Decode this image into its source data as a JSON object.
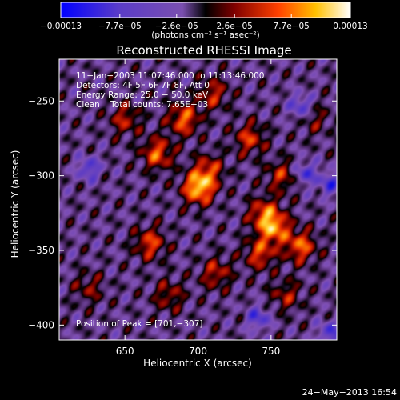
{
  "chart_data": {
    "type": "heatmap",
    "title": "Reconstructed RHESSI Image",
    "xlabel": "Heliocentric X (arcsec)",
    "ylabel": "Heliocentric Y (arcsec)",
    "xlim": [
      605,
      795
    ],
    "ylim": [
      -410,
      -222
    ],
    "xticks": [
      650,
      700,
      750
    ],
    "xtick_labels": [
      "650",
      "700",
      "750"
    ],
    "yticks": [
      -250,
      -300,
      -350,
      -400
    ],
    "ytick_labels": [
      "−250",
      "−300",
      "−350",
      "−400"
    ],
    "colorbar": {
      "range": [
        -0.00013,
        0.00013
      ],
      "ticks": [
        -0.00013,
        -7.7e-05,
        -2.6e-05,
        2.6e-05,
        7.7e-05,
        0.00013
      ],
      "tick_labels": [
        "−0.00013",
        "−7.7e−05",
        "−2.6e−05",
        "2.6e−05",
        "7.7e−05",
        "0.00013"
      ],
      "unit_label": "(photons cm⁻² s⁻¹ asec⁻²)",
      "colors": [
        "#0000ff",
        "#5a3cc8",
        "#8050b8",
        "#000000",
        "#800000",
        "#ff4000",
        "#ffc000",
        "#ffffff"
      ]
    },
    "annotations": [
      "11−Jan−2003 11:07:46.000 to 11:13:46.000",
      "Detectors: 4F 5F 6F 7F 8F, Att 0",
      "Energy Range: 25.0 − 50.0 keV",
      "Clean    Total counts: 7.65E+03"
    ],
    "peak_text": "Position of Peak = [701,−307]",
    "peak": [
      701,
      -307
    ],
    "sources": [
      {
        "x": 700,
        "y": -308,
        "amp": 1.0
      },
      {
        "x": 707,
        "y": -296,
        "amp": 0.55
      },
      {
        "x": 672,
        "y": -285,
        "amp": 0.7
      },
      {
        "x": 690,
        "y": -262,
        "amp": 0.72
      },
      {
        "x": 710,
        "y": -245,
        "amp": 0.5
      },
      {
        "x": 752,
        "y": -335,
        "amp": 0.8
      },
      {
        "x": 745,
        "y": -325,
        "amp": 0.65
      },
      {
        "x": 770,
        "y": -347,
        "amp": 0.72
      },
      {
        "x": 742,
        "y": -352,
        "amp": 0.6
      },
      {
        "x": 667,
        "y": -345,
        "amp": 0.62
      },
      {
        "x": 712,
        "y": -365,
        "amp": 0.5
      },
      {
        "x": 735,
        "y": -275,
        "amp": 0.58
      },
      {
        "x": 757,
        "y": -300,
        "amp": 0.5
      },
      {
        "x": 650,
        "y": -262,
        "amp": 0.48
      },
      {
        "x": 680,
        "y": -380,
        "amp": 0.42
      },
      {
        "x": 780,
        "y": -262,
        "amp": 0.3
      },
      {
        "x": 625,
        "y": -375,
        "amp": 0.35
      },
      {
        "x": 760,
        "y": -380,
        "amp": 0.42
      }
    ],
    "negative_spots": [
      {
        "x": 790,
        "y": -305
      },
      {
        "x": 773,
        "y": -298
      },
      {
        "x": 741,
        "y": -395
      },
      {
        "x": 625,
        "y": -295
      },
      {
        "x": 770,
        "y": -253
      },
      {
        "x": 790,
        "y": -405
      }
    ]
  },
  "footer": {
    "date": "24−May−2013 16:54"
  }
}
